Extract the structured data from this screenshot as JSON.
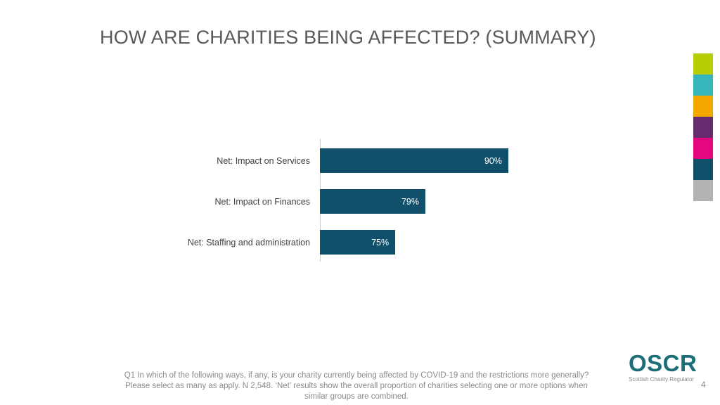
{
  "slide": {
    "title": "HOW ARE CHARITIES BEING AFFECTED? (SUMMARY)",
    "page_number": "4",
    "footnote_lines": [
      "Q1 In which of the following ways, if any, is your charity currently being affected by COVID-19 and the restrictions more generally?",
      "Please select as many as apply. N 2,548. ‘Net’ results show the overall proportion of charities selecting one or more options when",
      "similar groups are combined."
    ]
  },
  "logo": {
    "name": "OSCR",
    "tagline": "Scottish Charity Regulator",
    "color": "#1d6e78"
  },
  "accent_strip_colors": [
    "#b6cc04",
    "#34b6bc",
    "#f3a800",
    "#682a6e",
    "#e4087e",
    "#10506b",
    "#b2b2b2"
  ],
  "chart_data": {
    "type": "bar",
    "orientation": "horizontal",
    "categories": [
      "Net: Impact on Services",
      "Net: Impact on Finances",
      "Net: Staffing and administration"
    ],
    "values": [
      90,
      79,
      75
    ],
    "value_labels": [
      "90%",
      "79%",
      "75%"
    ],
    "bar_color": "#10506b",
    "xlim": [
      65,
      100
    ],
    "title": "",
    "xlabel": "",
    "ylabel": "",
    "grid": false,
    "legend": false
  }
}
